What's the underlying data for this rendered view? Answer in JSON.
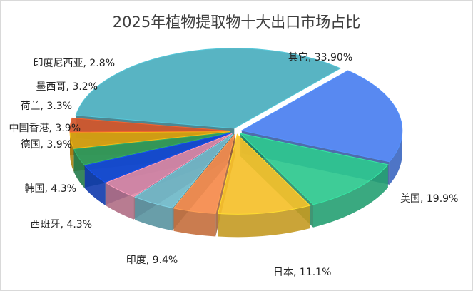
{
  "chart_data": {
    "type": "pie",
    "title": "2025年植物提取物十大出口市场占比",
    "slices": [
      {
        "label": "美国, 19.9%",
        "name": "美国",
        "value": 19.9,
        "color": "#4a7ff0"
      },
      {
        "label": "日本, 11.1%",
        "name": "日本",
        "value": 11.1,
        "color": "#2ec88e"
      },
      {
        "label": "印度, 9.4%",
        "name": "印度",
        "value": 9.4,
        "color": "#f5c02a"
      },
      {
        "label": "西班牙, 4.3%",
        "name": "西班牙",
        "value": 4.3,
        "color": "#f58a4b"
      },
      {
        "label": "韩国, 4.3%",
        "name": "韩国",
        "value": 4.3,
        "color": "#6fb8c8"
      },
      {
        "label": "德国, 3.9%",
        "name": "德国",
        "value": 3.9,
        "color": "#dc8aa6"
      },
      {
        "label": "中国香港, 3.9%",
        "name": "中国香港",
        "value": 3.9,
        "color": "#1448d8"
      },
      {
        "label": "荷兰, 3.3%",
        "name": "荷兰",
        "value": 3.3,
        "color": "#2b9a5e"
      },
      {
        "label": "墨西哥, 3.2%",
        "name": "墨西哥",
        "value": 3.2,
        "color": "#d6a412"
      },
      {
        "label": "印度尼西亚, 2.8%",
        "name": "印度尼西亚",
        "value": 2.8,
        "color": "#d4562a"
      },
      {
        "label": "其它, 33.90%",
        "name": "其它",
        "value": 33.9,
        "color": "#4aaebe"
      }
    ]
  }
}
